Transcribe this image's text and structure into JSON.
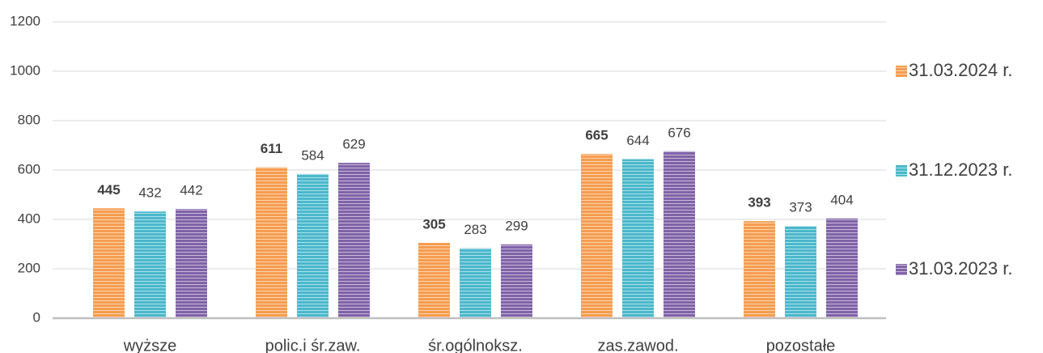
{
  "chart_data": {
    "type": "bar",
    "categories": [
      "wyższe",
      "polic.i śr.zaw.",
      "śr.ogólnoksz.",
      "zas.zawod.",
      "pozostałe"
    ],
    "series": [
      {
        "name": "31.03.2024 r.",
        "color": "#f59d4f",
        "values": [
          445,
          611,
          305,
          665,
          393
        ]
      },
      {
        "name": "31.12.2023 r.",
        "color": "#4bb8cc",
        "values": [
          432,
          584,
          283,
          644,
          373
        ]
      },
      {
        "name": "31.03.2023 r.",
        "color": "#8063a8",
        "values": [
          442,
          629,
          299,
          676,
          404
        ]
      }
    ],
    "ylim": [
      0,
      1200
    ],
    "yticks": [
      0,
      200,
      400,
      600,
      800,
      1000,
      1200
    ],
    "grid": true,
    "legend": "right"
  }
}
